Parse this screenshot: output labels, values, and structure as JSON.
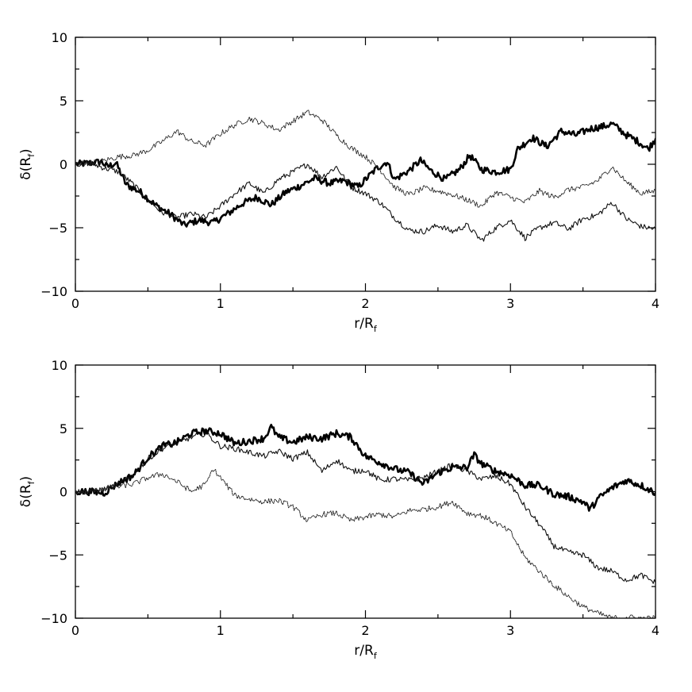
{
  "chart_data": [
    {
      "type": "line",
      "title": "",
      "xlabel": "r/R",
      "xlabel_sub": "f",
      "ylabel": "δ(R",
      "ylabel_sub": "f",
      "ylabel_close": ")",
      "xlim": [
        0,
        4
      ],
      "ylim": [
        -10,
        10
      ],
      "xticks": [
        0,
        1,
        2,
        3,
        4
      ],
      "yticks": [
        -10,
        -5,
        0,
        5,
        10
      ],
      "xtick_labels": [
        "0",
        "1",
        "2",
        "3",
        "4"
      ],
      "ytick_labels": [
        "−10",
        "−5",
        "0",
        "5",
        "10"
      ],
      "grid": false,
      "series": [
        {
          "style": "thick",
          "color": "#000000",
          "x": [
            0,
            0.1,
            0.18,
            0.22,
            0.28,
            0.35,
            0.45,
            0.55,
            0.65,
            0.75,
            0.85,
            0.95,
            1.05,
            1.15,
            1.25,
            1.35,
            1.45,
            1.55,
            1.65,
            1.75,
            1.85,
            1.95,
            2.0,
            2.08,
            2.15,
            2.2,
            2.3,
            2.38,
            2.45,
            2.55,
            2.65,
            2.72,
            2.8,
            2.9,
            3.0,
            3.05,
            3.15,
            3.25,
            3.35,
            3.45,
            3.55,
            3.65,
            3.7,
            3.8,
            3.88,
            3.95,
            4.0
          ],
          "y": [
            0,
            0.1,
            0.2,
            -0.2,
            0.1,
            -1.6,
            -2.2,
            -3.2,
            -3.9,
            -4.8,
            -4.4,
            -4.6,
            -3.9,
            -3.1,
            -2.6,
            -3.2,
            -2.2,
            -1.7,
            -1.1,
            -1.5,
            -1.3,
            -1.8,
            -1.2,
            -0.3,
            0.2,
            -1.2,
            -0.5,
            0.3,
            -0.5,
            -1.2,
            -0.4,
            0.7,
            -0.4,
            -0.6,
            -0.4,
            1.2,
            2.1,
            1.4,
            2.6,
            2.3,
            2.8,
            3.0,
            3.2,
            2.3,
            1.8,
            1.2,
            2.0
          ]
        },
        {
          "style": "thin",
          "color": "#111111",
          "x": [
            0,
            0.1,
            0.2,
            0.3,
            0.4,
            0.5,
            0.6,
            0.7,
            0.8,
            0.9,
            1.0,
            1.1,
            1.2,
            1.3,
            1.4,
            1.5,
            1.6,
            1.7,
            1.8,
            1.9,
            2.0,
            2.1,
            2.2,
            2.3,
            2.4,
            2.5,
            2.6,
            2.7,
            2.8,
            2.9,
            3.0,
            3.1,
            3.2,
            3.3,
            3.4,
            3.5,
            3.6,
            3.7,
            3.8,
            3.9,
            4.0
          ],
          "y": [
            0,
            0.1,
            -0.3,
            -0.6,
            -1.6,
            -2.8,
            -3.8,
            -4.2,
            -3.9,
            -4.2,
            -3.3,
            -2.3,
            -1.5,
            -2.3,
            -1.2,
            -0.6,
            0.0,
            -1.0,
            -0.2,
            -1.8,
            -2.3,
            -3.0,
            -4.2,
            -5.2,
            -5.3,
            -4.8,
            -5.3,
            -4.8,
            -6.0,
            -5.0,
            -4.4,
            -5.8,
            -5.0,
            -4.6,
            -5.1,
            -4.3,
            -4.0,
            -3.0,
            -4.3,
            -4.9,
            -5.1
          ]
        },
        {
          "style": "dotted",
          "color": "#222222",
          "x": [
            0,
            0.1,
            0.2,
            0.3,
            0.4,
            0.5,
            0.6,
            0.7,
            0.8,
            0.9,
            1.0,
            1.1,
            1.2,
            1.3,
            1.4,
            1.5,
            1.6,
            1.7,
            1.8,
            1.9,
            2.0,
            2.1,
            2.2,
            2.3,
            2.4,
            2.5,
            2.6,
            2.7,
            2.8,
            2.9,
            3.0,
            3.1,
            3.2,
            3.3,
            3.4,
            3.5,
            3.6,
            3.7,
            3.8,
            3.9,
            4.0
          ],
          "y": [
            0,
            0.1,
            0.3,
            0.6,
            0.7,
            1.1,
            1.8,
            2.6,
            1.8,
            1.5,
            2.4,
            3.1,
            3.6,
            3.2,
            2.7,
            3.4,
            4.1,
            3.5,
            2.3,
            1.3,
            0.6,
            -0.4,
            -1.8,
            -2.4,
            -1.9,
            -2.1,
            -2.4,
            -2.8,
            -3.3,
            -2.2,
            -2.6,
            -3.0,
            -2.1,
            -2.6,
            -2.0,
            -1.8,
            -1.3,
            -0.2,
            -1.4,
            -2.3,
            -2.1
          ]
        }
      ]
    },
    {
      "type": "line",
      "title": "",
      "xlabel": "r/R",
      "xlabel_sub": "f",
      "ylabel": "δ(R",
      "ylabel_sub": "f",
      "ylabel_close": ")",
      "xlim": [
        0,
        4
      ],
      "ylim": [
        -10,
        10
      ],
      "xticks": [
        0,
        1,
        2,
        3,
        4
      ],
      "yticks": [
        -10,
        -5,
        0,
        5,
        10
      ],
      "xtick_labels": [
        "0",
        "1",
        "2",
        "3",
        "4"
      ],
      "ytick_labels": [
        "−10",
        "−5",
        "0",
        "5",
        "10"
      ],
      "grid": false,
      "series": [
        {
          "style": "thick",
          "color": "#000000",
          "x": [
            0,
            0.1,
            0.2,
            0.3,
            0.4,
            0.5,
            0.6,
            0.7,
            0.8,
            0.9,
            1.0,
            1.1,
            1.2,
            1.3,
            1.35,
            1.4,
            1.5,
            1.6,
            1.7,
            1.8,
            1.9,
            2.0,
            2.1,
            2.2,
            2.3,
            2.4,
            2.5,
            2.6,
            2.7,
            2.75,
            2.8,
            2.9,
            3.0,
            3.1,
            3.2,
            3.3,
            3.4,
            3.5,
            3.55,
            3.6,
            3.7,
            3.8,
            3.9,
            4.0
          ],
          "y": [
            0,
            0.0,
            -0.1,
            0.7,
            1.3,
            2.7,
            3.6,
            3.9,
            4.6,
            4.8,
            4.6,
            3.8,
            4.0,
            4.2,
            5.1,
            4.3,
            3.9,
            4.3,
            4.2,
            4.6,
            4.3,
            2.8,
            2.3,
            1.8,
            1.5,
            0.6,
            1.5,
            1.9,
            1.9,
            2.9,
            2.2,
            1.6,
            1.3,
            0.5,
            0.5,
            -0.2,
            -0.4,
            -0.8,
            -1.4,
            -0.6,
            0.3,
            0.9,
            0.5,
            -0.1
          ]
        },
        {
          "style": "thin",
          "color": "#111111",
          "x": [
            0,
            0.1,
            0.2,
            0.3,
            0.4,
            0.5,
            0.6,
            0.7,
            0.8,
            0.9,
            1.0,
            1.1,
            1.2,
            1.3,
            1.4,
            1.5,
            1.6,
            1.7,
            1.8,
            1.9,
            2.0,
            2.1,
            2.2,
            2.3,
            2.4,
            2.5,
            2.6,
            2.7,
            2.8,
            2.9,
            3.0,
            3.1,
            3.2,
            3.3,
            3.4,
            3.5,
            3.6,
            3.7,
            3.8,
            3.9,
            4.0
          ],
          "y": [
            0,
            0.0,
            0.2,
            0.6,
            1.3,
            2.6,
            3.4,
            3.8,
            4.3,
            4.6,
            3.6,
            3.4,
            3.1,
            2.8,
            3.2,
            2.6,
            3.1,
            1.6,
            2.5,
            1.6,
            1.7,
            0.9,
            1.0,
            0.9,
            1.1,
            1.6,
            2.1,
            1.6,
            1.0,
            1.2,
            0.6,
            -1.2,
            -2.6,
            -4.3,
            -4.8,
            -5.0,
            -6.0,
            -6.3,
            -7.0,
            -6.6,
            -7.2
          ]
        },
        {
          "style": "dotted",
          "color": "#222222",
          "x": [
            0,
            0.1,
            0.2,
            0.3,
            0.4,
            0.5,
            0.6,
            0.7,
            0.8,
            0.9,
            0.95,
            1.0,
            1.1,
            1.2,
            1.3,
            1.4,
            1.5,
            1.6,
            1.7,
            1.8,
            1.9,
            2.0,
            2.1,
            2.2,
            2.3,
            2.4,
            2.5,
            2.6,
            2.7,
            2.8,
            2.9,
            3.0,
            3.1,
            3.2,
            3.3,
            3.4,
            3.5,
            3.6,
            3.7,
            3.8,
            3.9,
            4.0
          ],
          "y": [
            0,
            0.0,
            0.2,
            0.4,
            0.6,
            1.1,
            1.4,
            0.8,
            0.0,
            0.6,
            1.8,
            1.1,
            -0.3,
            -0.6,
            -0.8,
            -0.7,
            -1.2,
            -2.3,
            -1.8,
            -1.7,
            -2.3,
            -2.0,
            -1.8,
            -2.0,
            -1.5,
            -1.4,
            -1.2,
            -0.8,
            -1.7,
            -1.9,
            -2.5,
            -3.2,
            -5.2,
            -6.3,
            -7.4,
            -8.3,
            -9.1,
            -9.6,
            -10.0,
            -9.9,
            -10.0,
            -10.0
          ]
        }
      ]
    }
  ]
}
